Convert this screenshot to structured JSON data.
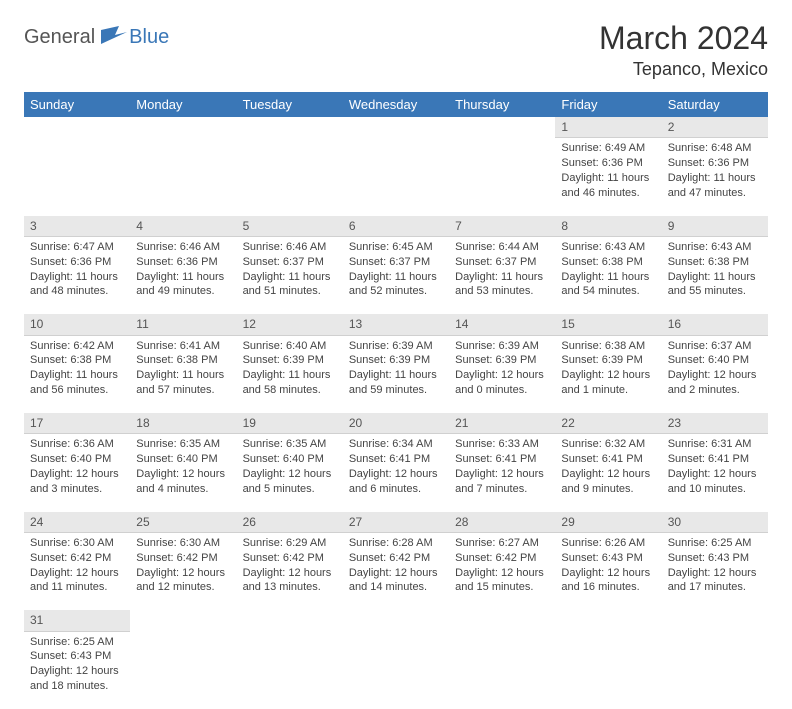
{
  "logo": {
    "text1": "General",
    "text2": "Blue"
  },
  "title": "March 2024",
  "location": "Tepanco, Mexico",
  "header_bg": "#3a77b7",
  "header_fg": "#ffffff",
  "daynum_bg": "#e8e8e8",
  "weekdays": [
    "Sunday",
    "Monday",
    "Tuesday",
    "Wednesday",
    "Thursday",
    "Friday",
    "Saturday"
  ],
  "weeks": [
    [
      null,
      null,
      null,
      null,
      null,
      {
        "n": "1",
        "sr": "6:49 AM",
        "ss": "6:36 PM",
        "dl": "11 hours and 46 minutes."
      },
      {
        "n": "2",
        "sr": "6:48 AM",
        "ss": "6:36 PM",
        "dl": "11 hours and 47 minutes."
      }
    ],
    [
      {
        "n": "3",
        "sr": "6:47 AM",
        "ss": "6:36 PM",
        "dl": "11 hours and 48 minutes."
      },
      {
        "n": "4",
        "sr": "6:46 AM",
        "ss": "6:36 PM",
        "dl": "11 hours and 49 minutes."
      },
      {
        "n": "5",
        "sr": "6:46 AM",
        "ss": "6:37 PM",
        "dl": "11 hours and 51 minutes."
      },
      {
        "n": "6",
        "sr": "6:45 AM",
        "ss": "6:37 PM",
        "dl": "11 hours and 52 minutes."
      },
      {
        "n": "7",
        "sr": "6:44 AM",
        "ss": "6:37 PM",
        "dl": "11 hours and 53 minutes."
      },
      {
        "n": "8",
        "sr": "6:43 AM",
        "ss": "6:38 PM",
        "dl": "11 hours and 54 minutes."
      },
      {
        "n": "9",
        "sr": "6:43 AM",
        "ss": "6:38 PM",
        "dl": "11 hours and 55 minutes."
      }
    ],
    [
      {
        "n": "10",
        "sr": "6:42 AM",
        "ss": "6:38 PM",
        "dl": "11 hours and 56 minutes."
      },
      {
        "n": "11",
        "sr": "6:41 AM",
        "ss": "6:38 PM",
        "dl": "11 hours and 57 minutes."
      },
      {
        "n": "12",
        "sr": "6:40 AM",
        "ss": "6:39 PM",
        "dl": "11 hours and 58 minutes."
      },
      {
        "n": "13",
        "sr": "6:39 AM",
        "ss": "6:39 PM",
        "dl": "11 hours and 59 minutes."
      },
      {
        "n": "14",
        "sr": "6:39 AM",
        "ss": "6:39 PM",
        "dl": "12 hours and 0 minutes."
      },
      {
        "n": "15",
        "sr": "6:38 AM",
        "ss": "6:39 PM",
        "dl": "12 hours and 1 minute."
      },
      {
        "n": "16",
        "sr": "6:37 AM",
        "ss": "6:40 PM",
        "dl": "12 hours and 2 minutes."
      }
    ],
    [
      {
        "n": "17",
        "sr": "6:36 AM",
        "ss": "6:40 PM",
        "dl": "12 hours and 3 minutes."
      },
      {
        "n": "18",
        "sr": "6:35 AM",
        "ss": "6:40 PM",
        "dl": "12 hours and 4 minutes."
      },
      {
        "n": "19",
        "sr": "6:35 AM",
        "ss": "6:40 PM",
        "dl": "12 hours and 5 minutes."
      },
      {
        "n": "20",
        "sr": "6:34 AM",
        "ss": "6:41 PM",
        "dl": "12 hours and 6 minutes."
      },
      {
        "n": "21",
        "sr": "6:33 AM",
        "ss": "6:41 PM",
        "dl": "12 hours and 7 minutes."
      },
      {
        "n": "22",
        "sr": "6:32 AM",
        "ss": "6:41 PM",
        "dl": "12 hours and 9 minutes."
      },
      {
        "n": "23",
        "sr": "6:31 AM",
        "ss": "6:41 PM",
        "dl": "12 hours and 10 minutes."
      }
    ],
    [
      {
        "n": "24",
        "sr": "6:30 AM",
        "ss": "6:42 PM",
        "dl": "12 hours and 11 minutes."
      },
      {
        "n": "25",
        "sr": "6:30 AM",
        "ss": "6:42 PM",
        "dl": "12 hours and 12 minutes."
      },
      {
        "n": "26",
        "sr": "6:29 AM",
        "ss": "6:42 PM",
        "dl": "12 hours and 13 minutes."
      },
      {
        "n": "27",
        "sr": "6:28 AM",
        "ss": "6:42 PM",
        "dl": "12 hours and 14 minutes."
      },
      {
        "n": "28",
        "sr": "6:27 AM",
        "ss": "6:42 PM",
        "dl": "12 hours and 15 minutes."
      },
      {
        "n": "29",
        "sr": "6:26 AM",
        "ss": "6:43 PM",
        "dl": "12 hours and 16 minutes."
      },
      {
        "n": "30",
        "sr": "6:25 AM",
        "ss": "6:43 PM",
        "dl": "12 hours and 17 minutes."
      }
    ],
    [
      {
        "n": "31",
        "sr": "6:25 AM",
        "ss": "6:43 PM",
        "dl": "12 hours and 18 minutes."
      },
      null,
      null,
      null,
      null,
      null,
      null
    ]
  ],
  "labels": {
    "sunrise": "Sunrise: ",
    "sunset": "Sunset: ",
    "daylight": "Daylight: "
  }
}
